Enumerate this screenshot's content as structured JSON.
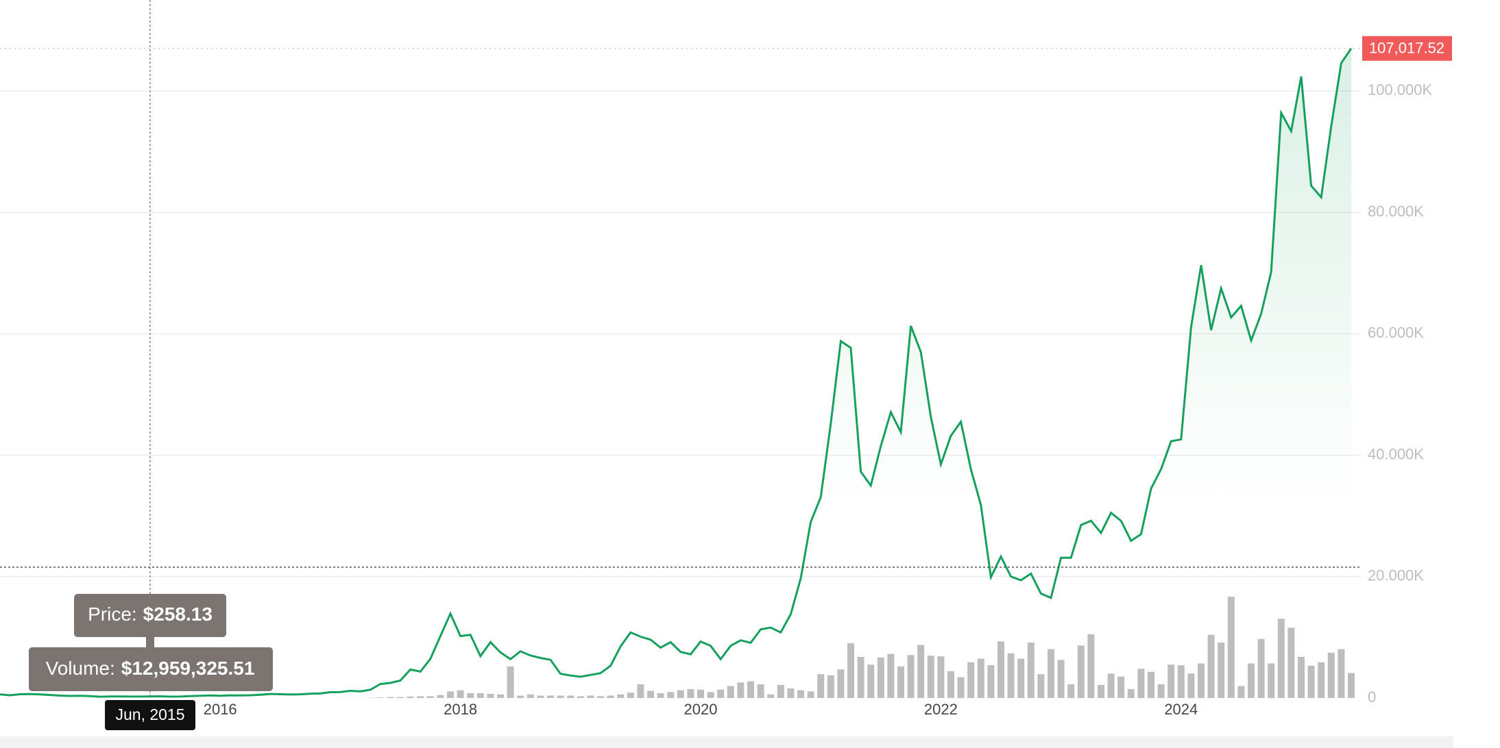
{
  "chart_data": {
    "type": "line",
    "x": [
      "2014-03",
      "2014-04",
      "2014-05",
      "2014-06",
      "2014-07",
      "2014-08",
      "2014-09",
      "2014-10",
      "2014-11",
      "2014-12",
      "2015-01",
      "2015-02",
      "2015-03",
      "2015-04",
      "2015-05",
      "2015-06",
      "2015-07",
      "2015-08",
      "2015-09",
      "2015-10",
      "2015-11",
      "2015-12",
      "2016-01",
      "2016-02",
      "2016-03",
      "2016-04",
      "2016-05",
      "2016-06",
      "2016-07",
      "2016-08",
      "2016-09",
      "2016-10",
      "2016-11",
      "2016-12",
      "2017-01",
      "2017-02",
      "2017-03",
      "2017-04",
      "2017-05",
      "2017-06",
      "2017-07",
      "2017-08",
      "2017-09",
      "2017-10",
      "2017-11",
      "2017-12",
      "2018-01",
      "2018-02",
      "2018-03",
      "2018-04",
      "2018-05",
      "2018-06",
      "2018-07",
      "2018-08",
      "2018-09",
      "2018-10",
      "2018-11",
      "2018-12",
      "2019-01",
      "2019-02",
      "2019-03",
      "2019-04",
      "2019-05",
      "2019-06",
      "2019-07",
      "2019-08",
      "2019-09",
      "2019-10",
      "2019-11",
      "2019-12",
      "2020-01",
      "2020-02",
      "2020-03",
      "2020-04",
      "2020-05",
      "2020-06",
      "2020-07",
      "2020-08",
      "2020-09",
      "2020-10",
      "2020-11",
      "2020-12",
      "2021-01",
      "2021-02",
      "2021-03",
      "2021-04",
      "2021-05",
      "2021-06",
      "2021-07",
      "2021-08",
      "2021-09",
      "2021-10",
      "2021-11",
      "2021-12",
      "2022-01",
      "2022-02",
      "2022-03",
      "2022-04",
      "2022-05",
      "2022-06",
      "2022-07",
      "2022-08",
      "2022-09",
      "2022-10",
      "2022-11",
      "2022-12",
      "2023-01",
      "2023-02",
      "2023-03",
      "2023-04",
      "2023-05",
      "2023-06",
      "2023-07",
      "2023-08",
      "2023-09",
      "2023-10",
      "2023-11",
      "2023-12",
      "2024-01",
      "2024-02",
      "2024-03",
      "2024-04",
      "2024-05",
      "2024-06",
      "2024-07",
      "2024-08",
      "2024-09",
      "2024-10",
      "2024-11",
      "2024-12",
      "2025-01",
      "2025-02",
      "2025-03",
      "2025-04",
      "2025-05",
      "2025-06"
    ],
    "series": [
      {
        "name": "Price",
        "color": "#16a05d",
        "values": [
          600,
          450,
          620,
          640,
          590,
          500,
          390,
          340,
          360,
          320,
          220,
          250,
          245,
          236,
          232,
          258.13,
          284,
          230,
          237,
          314,
          378,
          430,
          370,
          437,
          416,
          448,
          530,
          670,
          624,
          574,
          609,
          700,
          742,
          960,
          970,
          1190,
          1080,
          1350,
          2300,
          2480,
          2880,
          4700,
          4340,
          6450,
          10200,
          13900,
          10200,
          10400,
          6900,
          9200,
          7500,
          6400,
          7700,
          7000,
          6600,
          6300,
          4000,
          3700,
          3500,
          3800,
          4100,
          5300,
          8500,
          10800,
          10100,
          9600,
          8300,
          9200,
          7600,
          7200,
          9300,
          8600,
          6400,
          8600,
          9500,
          9100,
          11300,
          11600,
          10800,
          13800,
          19700,
          29000,
          33100,
          45200,
          58800,
          57700,
          37300,
          35000,
          41500,
          47100,
          43800,
          61300,
          57000,
          46300,
          38500,
          43200,
          45500,
          37700,
          31800,
          19900,
          23300,
          20000,
          19400,
          20500,
          17200,
          16500,
          23100,
          23100,
          28500,
          29200,
          27200,
          30500,
          29200,
          25900,
          27000,
          34500,
          37700,
          42300,
          42600,
          61100,
          71300,
          60600,
          67500,
          62700,
          64600,
          58900,
          63300,
          70200,
          96400,
          93400,
          102400,
          84400,
          82500,
          94200,
          104600,
          107017.52
        ]
      },
      {
        "name": "Volume",
        "color": "#bdbdbd",
        "axis": "y2",
        "values": [
          20000000.0,
          20000000.0,
          20000000.0,
          15000000.0,
          15000000.0,
          15000000.0,
          15000000.0,
          15000000.0,
          15000000.0,
          15000000.0,
          15000000.0,
          15000000.0,
          15000000.0,
          13000000.0,
          13000000.0,
          12959325.51,
          16000000.0,
          18000000.0,
          15000000.0,
          20000000.0,
          40000000.0,
          30000000.0,
          30000000.0,
          30000000.0,
          30000000.0,
          30000000.0,
          50000000.0,
          100000000.0,
          80000000.0,
          60000000.0,
          50000000.0,
          80000000.0,
          100000000.0,
          200000000.0,
          2000000000.0,
          2000000000.0,
          3000000000.0,
          5000000000.0,
          10000000000.0,
          16000000000.0,
          16000000000.0,
          25000000000.0,
          30000000000.0,
          30000000000.0,
          50000000000.0,
          110000000000.0,
          130000000000.0,
          80000000000.0,
          80000000000.0,
          70000000000.0,
          60000000000.0,
          530000000000.0,
          40000000000.0,
          60000000000.0,
          40000000000.0,
          40000000000.0,
          40000000000.0,
          40000000000.0,
          30000000000.0,
          40000000000.0,
          30000000000.0,
          40000000000.0,
          60000000000.0,
          90000000000.0,
          230000000000.0,
          120000000000.0,
          80000000000.0,
          100000000000.0,
          130000000000.0,
          150000000000.0,
          140000000000.0,
          100000000000.0,
          140000000000.0,
          200000000000.0,
          260000000000.0,
          280000000000.0,
          230000000000.0,
          60000000000.0,
          220000000000.0,
          160000000000.0,
          130000000000.0,
          110000000000.0,
          400000000000.0,
          380000000000.0,
          480000000000.0,
          920000000000.0,
          690000000000.0,
          560000000000.0,
          680000000000.0,
          740000000000.0,
          530000000000.0,
          720000000000.0,
          890000000000.0,
          710000000000.0,
          700000000000.0,
          450000000000.0,
          350000000000.0,
          600000000000.0,
          660000000000.0,
          550000000000.0,
          950000000000.0,
          750000000000.0,
          660000000000.0,
          930000000000.0,
          400000000000.0,
          820000000000.0,
          640000000000.0,
          230000000000.0,
          880000000000.0,
          1070000000000.0,
          220000000000.0,
          410000000000.0,
          360000000000.0,
          150000000000.0,
          490000000000.0,
          440000000000.0,
          230000000000.0,
          560000000000.0,
          550000000000.0,
          410000000000.0,
          580000000000.0,
          1060000000000.0,
          930000000000.0,
          1700000000000.0,
          200000000000.0,
          580000000000.0,
          990000000000.0,
          580000000000.0,
          1330000000000.0,
          1180000000000.0,
          690000000000.0,
          540000000000.0,
          600000000000.0,
          760000000000.0,
          820000000000.0,
          420000000000.0
        ]
      }
    ],
    "xlim": [
      "2014-03",
      "2025-06"
    ],
    "xticks": [
      2016,
      2018,
      2020,
      2022,
      2024
    ],
    "ylim": [
      0,
      115000
    ],
    "yticks": [
      0,
      {
        "value": 20000,
        "label": "20.000K"
      },
      {
        "value": 40000,
        "label": "40.000K"
      },
      {
        "value": 60000,
        "label": "60.000K"
      },
      {
        "value": 80000,
        "label": "80.000K"
      },
      {
        "value": 100000,
        "label": "100.000K"
      }
    ],
    "y2lim": [
      0,
      2000000000000
    ],
    "grid": true,
    "current_price": {
      "value": 107017.52,
      "label": "107,017.52"
    },
    "tooltip": {
      "date": "Jun, 2015",
      "price_label": "Price:",
      "price": "$258.13",
      "volume_label": "Volume:",
      "volume": "$12,959,325.51"
    }
  }
}
